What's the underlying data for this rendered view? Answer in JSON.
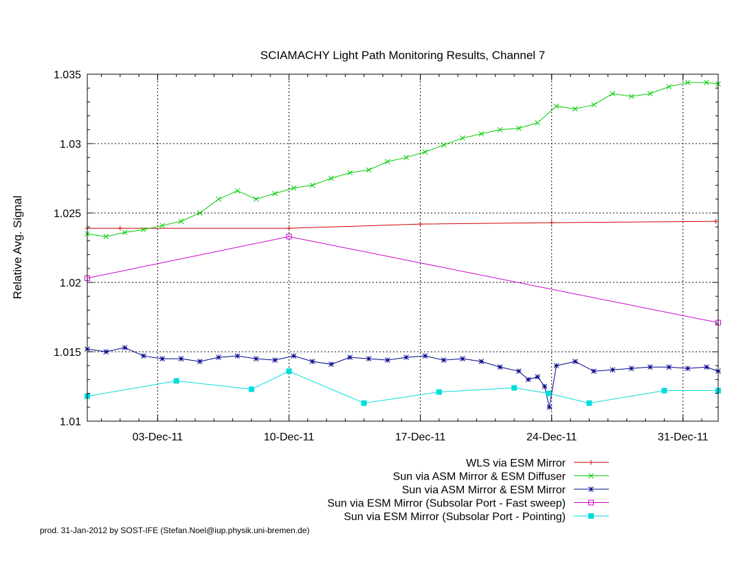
{
  "chart_data": {
    "type": "line",
    "title": "SCIAMACHY Light Path Monitoring Results, Channel 7",
    "xlabel": "",
    "ylabel": "Relative Avg. Signal",
    "xlim": [
      "2011-11-29T06:00",
      "2012-01-01T21:00"
    ],
    "ylim": [
      1.01,
      1.035
    ],
    "y_ticks": [
      1.01,
      1.015,
      1.02,
      1.025,
      1.03,
      1.035
    ],
    "y_tick_labels": [
      "1.01",
      "1.015",
      "1.02",
      "1.025",
      "1.03",
      "1.035"
    ],
    "x_ticks": [
      "2011-12-03",
      "2011-12-10",
      "2011-12-17",
      "2011-12-24",
      "2011-12-31"
    ],
    "x_tick_labels": [
      "03-Dec-11",
      "10-Dec-11",
      "17-Dec-11",
      "24-Dec-11",
      "31-Dec-11"
    ],
    "grid": true,
    "legend_position": "bottom-right",
    "footer": "prod. 31-Jan-2012 by SOST-IFE (Stefan.Noel@iup.physik.uni-bremen.de)",
    "series": [
      {
        "name": "WLS via ESM Mirror",
        "color": "#cc0000",
        "marker": "plus",
        "x": [
          "2011-11-29T06:00",
          "2011-12-01T00:00",
          "2011-12-10T00:00",
          "2011-12-17T00:00",
          "2011-12-24T00:00",
          "2012-01-01T18:00"
        ],
        "y": [
          1.0239,
          1.0239,
          1.0239,
          1.0242,
          1.0243,
          1.0244
        ]
      },
      {
        "name": "Sun via ASM Mirror & ESM Diffuser",
        "color": "#00cc00",
        "marker": "cross",
        "x": [
          "2011-11-29T06:00",
          "2011-11-30T06:00",
          "2011-12-01T06:00",
          "2011-12-02T06:00",
          "2011-12-03T06:00",
          "2011-12-04T06:00",
          "2011-12-05T06:00",
          "2011-12-06T06:00",
          "2011-12-07T06:00",
          "2011-12-08T06:00",
          "2011-12-09T06:00",
          "2011-12-10T06:00",
          "2011-12-11T06:00",
          "2011-12-12T06:00",
          "2011-12-13T06:00",
          "2011-12-14T06:00",
          "2011-12-15T06:00",
          "2011-12-16T06:00",
          "2011-12-17T06:00",
          "2011-12-18T06:00",
          "2011-12-19T06:00",
          "2011-12-20T06:00",
          "2011-12-21T06:00",
          "2011-12-22T06:00",
          "2011-12-23T06:00",
          "2011-12-24T06:00",
          "2011-12-25T06:00",
          "2011-12-26T06:00",
          "2011-12-27T06:00",
          "2011-12-28T06:00",
          "2011-12-29T06:00",
          "2011-12-30T06:00",
          "2011-12-31T06:00",
          "2012-01-01T06:00",
          "2012-01-01T21:00"
        ],
        "y": [
          1.0235,
          1.0233,
          1.0236,
          1.0238,
          1.0241,
          1.0244,
          1.025,
          1.026,
          1.0266,
          1.026,
          1.0264,
          1.0268,
          1.027,
          1.0275,
          1.0279,
          1.0281,
          1.0287,
          1.029,
          1.0294,
          1.0299,
          1.0304,
          1.0307,
          1.031,
          1.0311,
          1.0315,
          1.0327,
          1.0325,
          1.0328,
          1.0336,
          1.0334,
          1.0336,
          1.0341,
          1.0344,
          1.0344,
          1.0343
        ]
      },
      {
        "name": "Sun via ASM Mirror & ESM Mirror",
        "color": "#00008b",
        "marker": "star",
        "x": [
          "2011-11-29T06:00",
          "2011-11-30T06:00",
          "2011-12-01T06:00",
          "2011-12-02T06:00",
          "2011-12-03T06:00",
          "2011-12-04T06:00",
          "2011-12-05T06:00",
          "2011-12-06T06:00",
          "2011-12-07T06:00",
          "2011-12-08T06:00",
          "2011-12-09T06:00",
          "2011-12-10T06:00",
          "2011-12-11T06:00",
          "2011-12-12T06:00",
          "2011-12-13T06:00",
          "2011-12-14T06:00",
          "2011-12-15T06:00",
          "2011-12-16T06:00",
          "2011-12-17T06:00",
          "2011-12-18T06:00",
          "2011-12-19T06:00",
          "2011-12-20T06:00",
          "2011-12-21T06:00",
          "2011-12-22T06:00",
          "2011-12-22T18:00",
          "2011-12-23T06:00",
          "2011-12-23T15:00",
          "2011-12-23T21:00",
          "2011-12-24T06:00",
          "2011-12-25T06:00",
          "2011-12-26T06:00",
          "2011-12-27T06:00",
          "2011-12-28T06:00",
          "2011-12-29T06:00",
          "2011-12-30T06:00",
          "2011-12-31T06:00",
          "2012-01-01T06:00",
          "2012-01-01T21:00"
        ],
        "y": [
          1.0152,
          1.015,
          1.0153,
          1.0147,
          1.0145,
          1.0145,
          1.0143,
          1.0146,
          1.0147,
          1.0145,
          1.0144,
          1.0147,
          1.0143,
          1.0141,
          1.0146,
          1.0145,
          1.0144,
          1.0146,
          1.0147,
          1.0144,
          1.0145,
          1.0143,
          1.0139,
          1.0136,
          1.013,
          1.0132,
          1.0125,
          1.011,
          1.014,
          1.0143,
          1.0136,
          1.0137,
          1.0138,
          1.0139,
          1.0139,
          1.0138,
          1.0139,
          1.0136
        ]
      },
      {
        "name": "Sun via ESM Mirror (Subsolar Port - Fast sweep)",
        "color": "#cc00cc",
        "marker": "square-open",
        "x": [
          "2011-11-29T06:00",
          "2011-12-10T00:00",
          "2012-01-01T21:00"
        ],
        "y": [
          1.0203,
          1.0233,
          1.0171
        ]
      },
      {
        "name": "Sun via ESM Mirror (Subsolar Port - Pointing)",
        "color": "#00dddd",
        "marker": "square-filled",
        "x": [
          "2011-11-29T06:00",
          "2011-12-04T00:00",
          "2011-12-08T00:00",
          "2011-12-10T00:00",
          "2011-12-14T00:00",
          "2011-12-18T00:00",
          "2011-12-22T00:00",
          "2011-12-23T20:00",
          "2011-12-26T00:00",
          "2011-12-30T00:00",
          "2012-01-01T21:00"
        ],
        "y": [
          1.0118,
          1.0129,
          1.0123,
          1.0136,
          1.0113,
          1.0121,
          1.0124,
          1.012,
          1.0113,
          1.0122,
          1.0122
        ]
      }
    ]
  }
}
